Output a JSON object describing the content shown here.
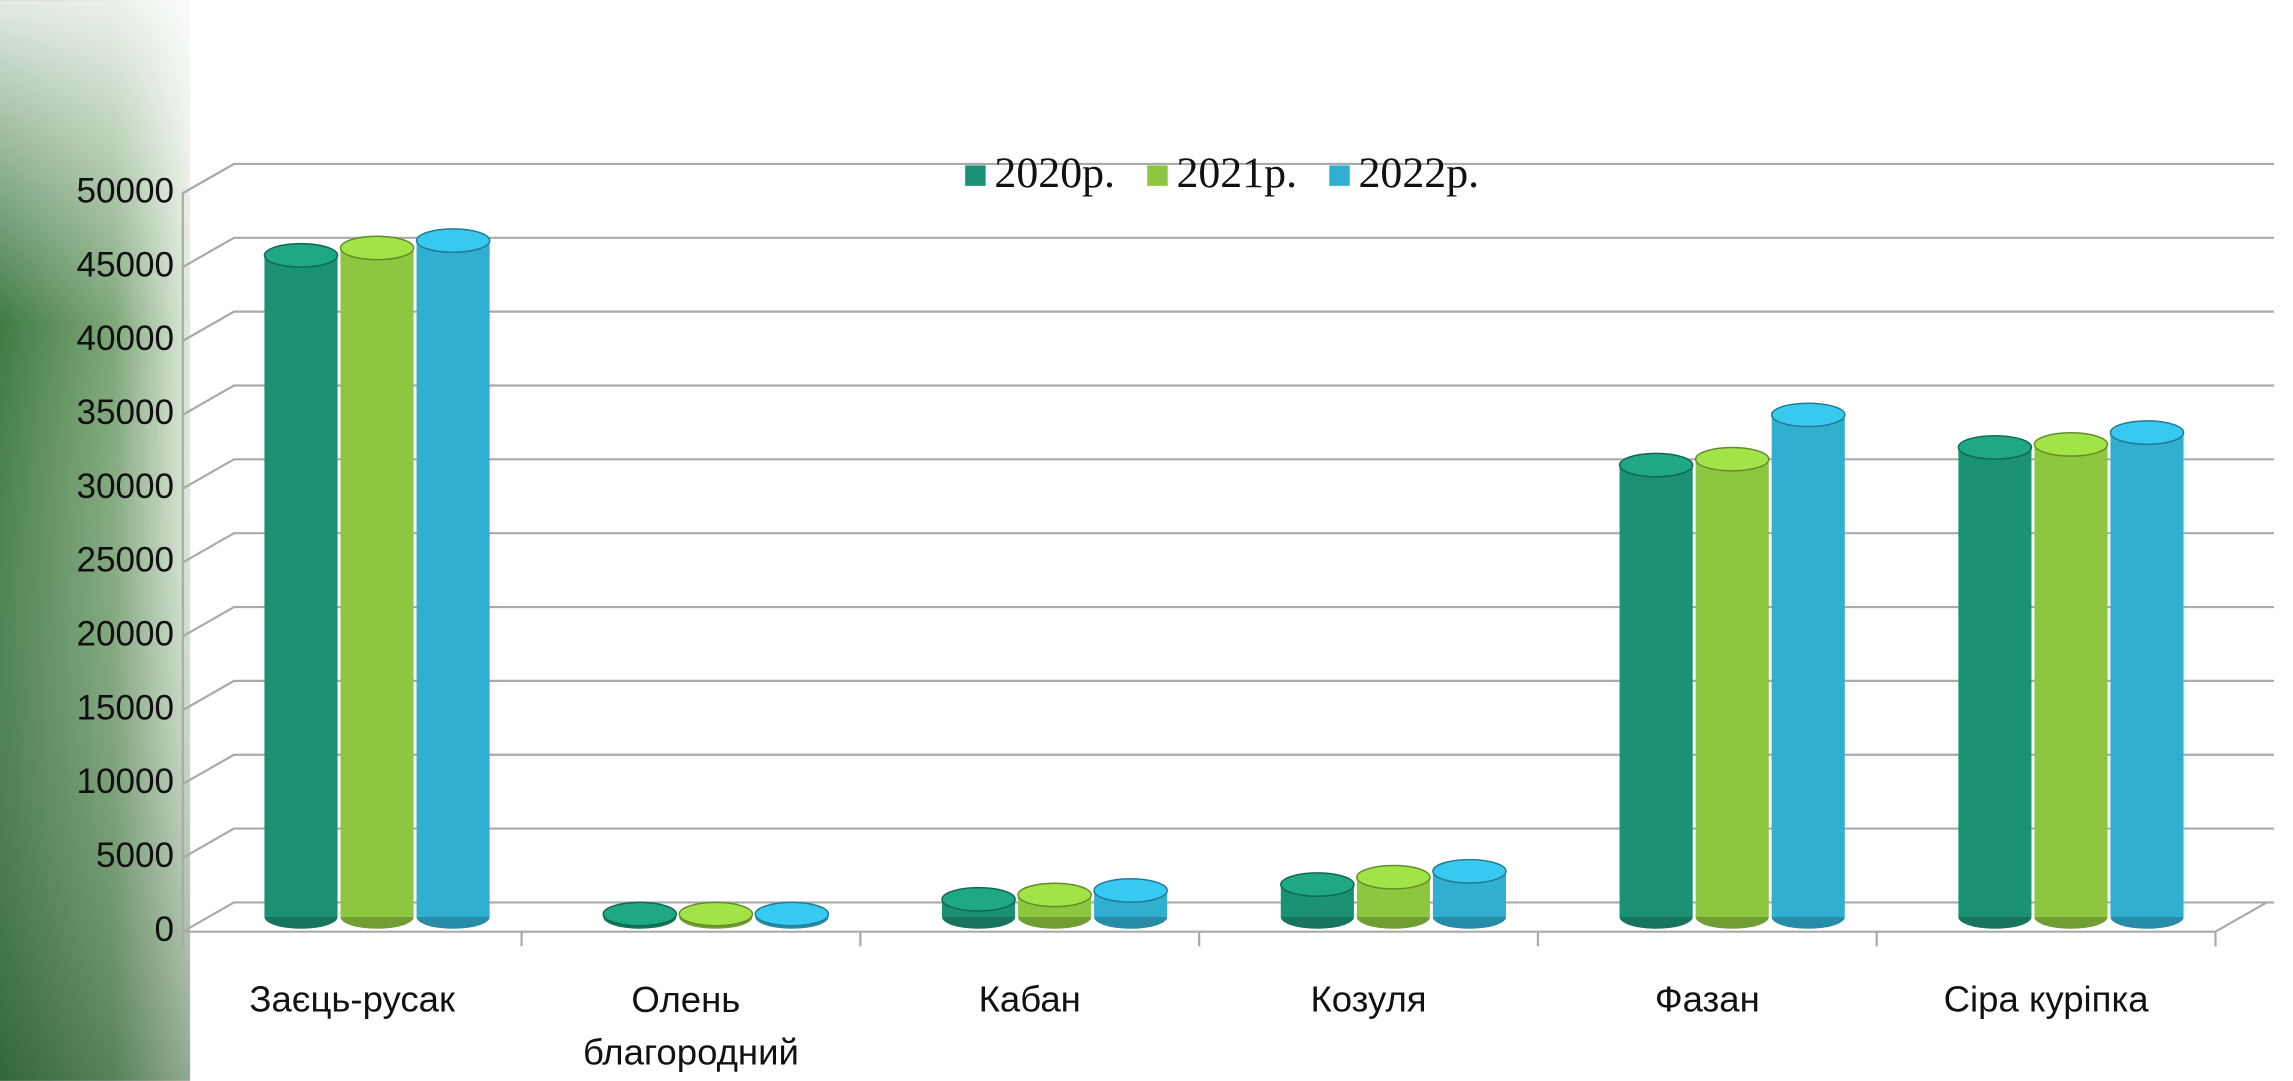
{
  "chart_data": {
    "type": "bar3d",
    "categories": [
      "Заєць-русак",
      "Олень благородний",
      "Кабан",
      "Козуля",
      "Фазан",
      "Сіра куріпка"
    ],
    "series": [
      {
        "name": "2020р.",
        "color": "#1b9273",
        "values": [
          44800,
          200,
          1200,
          2200,
          30600,
          31800
        ]
      },
      {
        "name": "2021р.",
        "color": "#8dc63f",
        "values": [
          45300,
          200,
          1500,
          2700,
          31000,
          32000
        ]
      },
      {
        "name": "2022р.",
        "color": "#31afd1",
        "values": [
          45800,
          200,
          1800,
          3100,
          34000,
          32800
        ]
      }
    ],
    "ylim": [
      0,
      50000
    ],
    "yticks": [
      0,
      5000,
      10000,
      15000,
      20000,
      25000,
      30000,
      35000,
      40000,
      45000,
      50000
    ],
    "grid": true,
    "legend": "top"
  }
}
